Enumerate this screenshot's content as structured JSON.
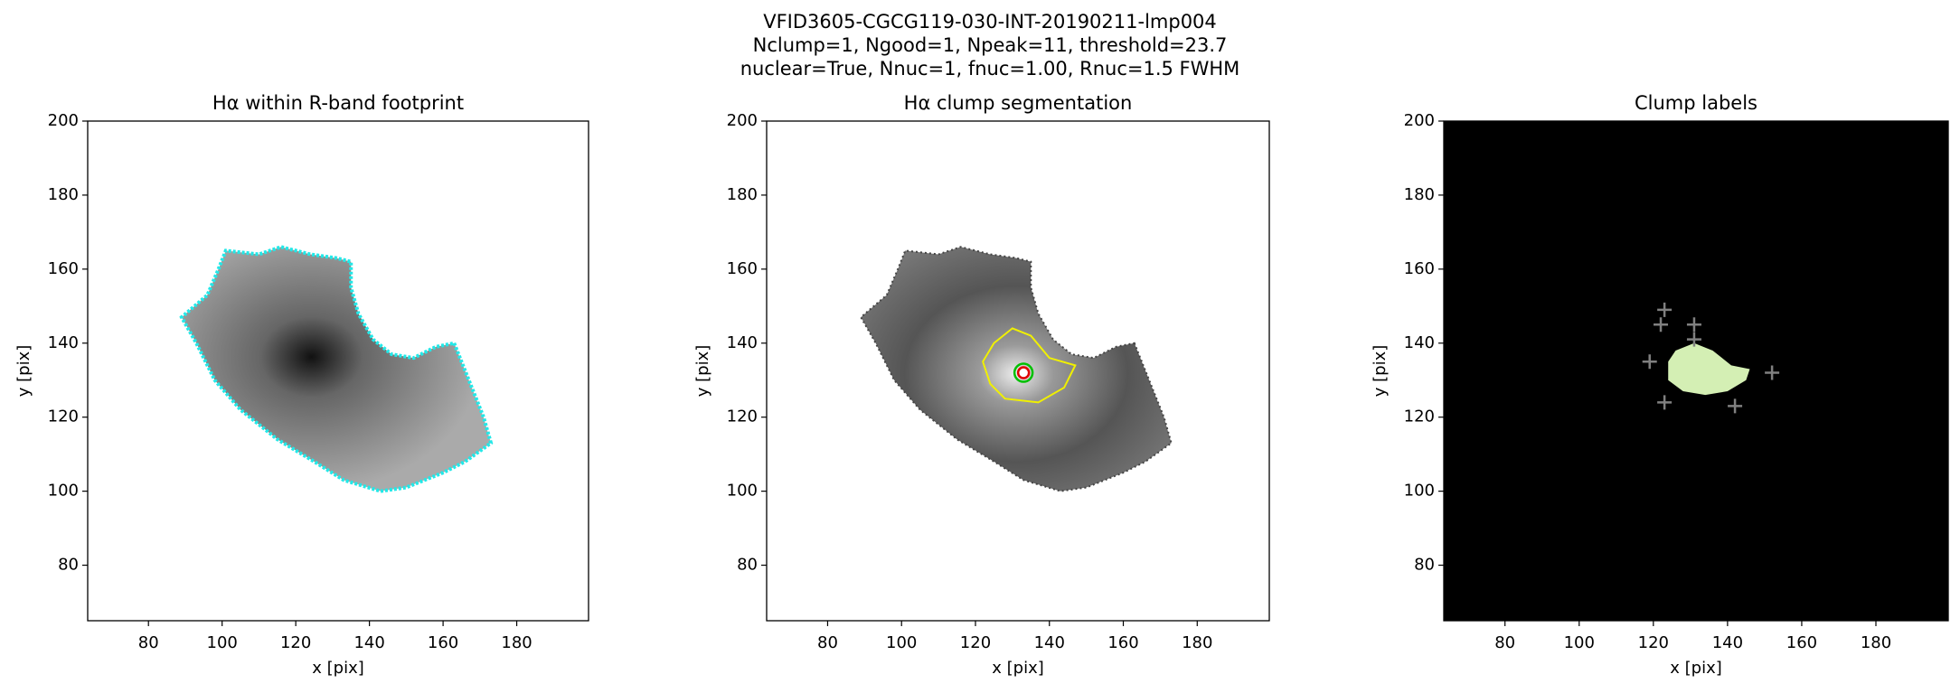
{
  "suptitle": [
    "VFID3605-CGCG119-030-INT-20190211-lmp004",
    "Nclump=1, Ngood=1, Npeak=11, threshold=23.7",
    "nuclear=True, Nnuc=1, fnuc=1.00, Rnuc=1.5 FWHM"
  ],
  "chart_data": [
    {
      "type": "image",
      "title": "Hα within R-band footprint",
      "xlabel": "x [pix]",
      "ylabel": "y [pix]",
      "xlim": [
        63.5,
        199.5
      ],
      "ylim": [
        65,
        200
      ],
      "xticks": [
        80,
        100,
        120,
        140,
        160,
        180
      ],
      "yticks": [
        80,
        100,
        120,
        140,
        160,
        180,
        200
      ],
      "contour_color": "#22e8e8"
    },
    {
      "type": "image",
      "title": "Hα clump segmentation",
      "xlabel": "x [pix]",
      "ylabel": "y [pix]",
      "xlim": [
        63.5,
        199.5
      ],
      "ylim": [
        65,
        200
      ],
      "xticks": [
        80,
        100,
        120,
        140,
        160,
        180
      ],
      "yticks": [
        80,
        100,
        120,
        140,
        160,
        180,
        200
      ],
      "contour_color": "#f0f000",
      "nucleus": {
        "x": 133,
        "y": 132
      }
    },
    {
      "type": "scatter",
      "title": "Clump labels",
      "xlabel": "x [pix]",
      "ylabel": "y [pix]",
      "xlim": [
        63.5,
        199.5
      ],
      "ylim": [
        65,
        200
      ],
      "xticks": [
        80,
        100,
        120,
        140,
        160,
        180
      ],
      "yticks": [
        80,
        100,
        120,
        140,
        160,
        180,
        200
      ],
      "background": "#000000",
      "clump_color": "#d4efb4",
      "color": "#808080",
      "x": [
        123,
        122,
        131,
        131,
        119,
        152,
        123,
        142
      ],
      "values": [
        149,
        145,
        145,
        141,
        135,
        132,
        124,
        123
      ]
    }
  ]
}
